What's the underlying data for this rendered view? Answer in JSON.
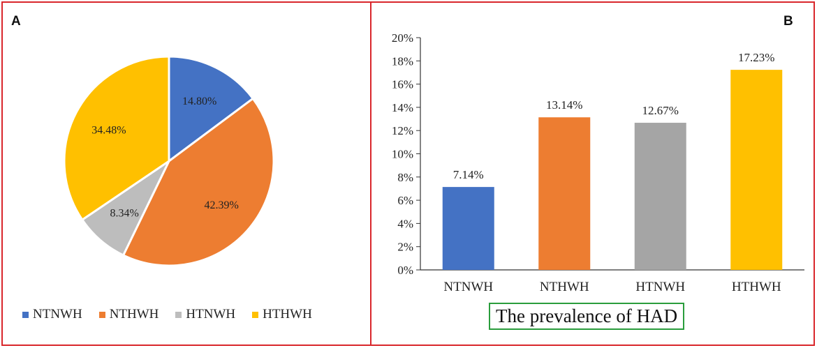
{
  "chart_data": [
    {
      "panel_label": "A",
      "type": "pie",
      "categories": [
        "NTNWH",
        "NTHWH",
        "HTNWH",
        "HTHWH"
      ],
      "values": [
        14.8,
        42.39,
        8.34,
        34.48
      ],
      "data_labels": [
        "14.80%",
        "42.39%",
        "8.34%",
        "34.48%"
      ],
      "colors": [
        "#4472c4",
        "#ed7d31",
        "#bdbdbd",
        "#ffc000"
      ],
      "legend_position": "bottom",
      "start_angle_deg": 0,
      "direction": "clockwise"
    },
    {
      "panel_label": "B",
      "type": "bar",
      "categories": [
        "NTNWH",
        "NTHWH",
        "HTNWH",
        "HTHWH"
      ],
      "values": [
        7.14,
        13.14,
        12.67,
        17.23
      ],
      "data_labels": [
        "7.14%",
        "13.14%",
        "12.67%",
        "17.23%"
      ],
      "colors": [
        "#4472c4",
        "#ed7d31",
        "#a5a5a5",
        "#ffc000"
      ],
      "ylim": [
        0,
        20
      ],
      "yticks": [
        0,
        2,
        4,
        6,
        8,
        10,
        12,
        14,
        16,
        18,
        20
      ],
      "ytick_labels": [
        "0%",
        "2%",
        "4%",
        "6%",
        "8%",
        "10%",
        "12%",
        "14%",
        "16%",
        "18%",
        "20%"
      ],
      "grid": false,
      "xlabel": "The prevalence of HAD"
    }
  ]
}
